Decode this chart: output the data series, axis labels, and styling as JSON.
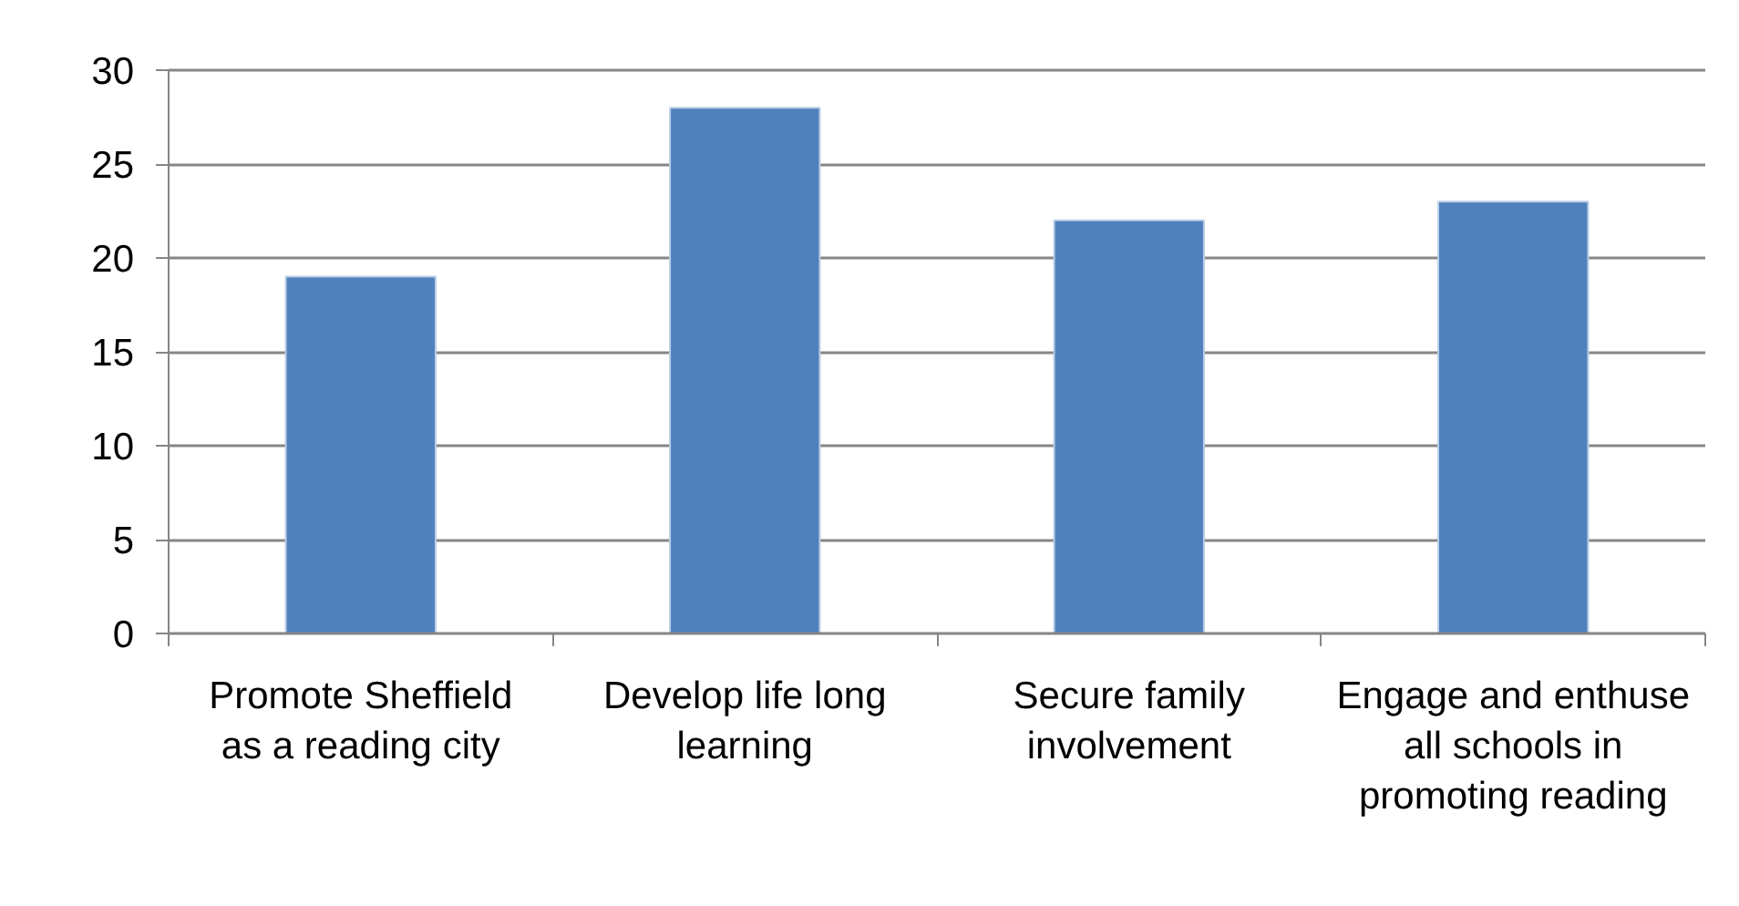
{
  "chart_data": {
    "type": "bar",
    "categories": [
      "Promote Sheffield as a reading city",
      "Develop life long learning",
      "Secure family involvement",
      "Engage and enthuse all schools in promoting reading"
    ],
    "values": [
      19,
      28,
      22,
      23
    ],
    "color": "#4f81bd",
    "ylim": [
      0,
      30
    ],
    "yticks": [
      0,
      5,
      10,
      15,
      20,
      25,
      30
    ],
    "grid": "y"
  }
}
